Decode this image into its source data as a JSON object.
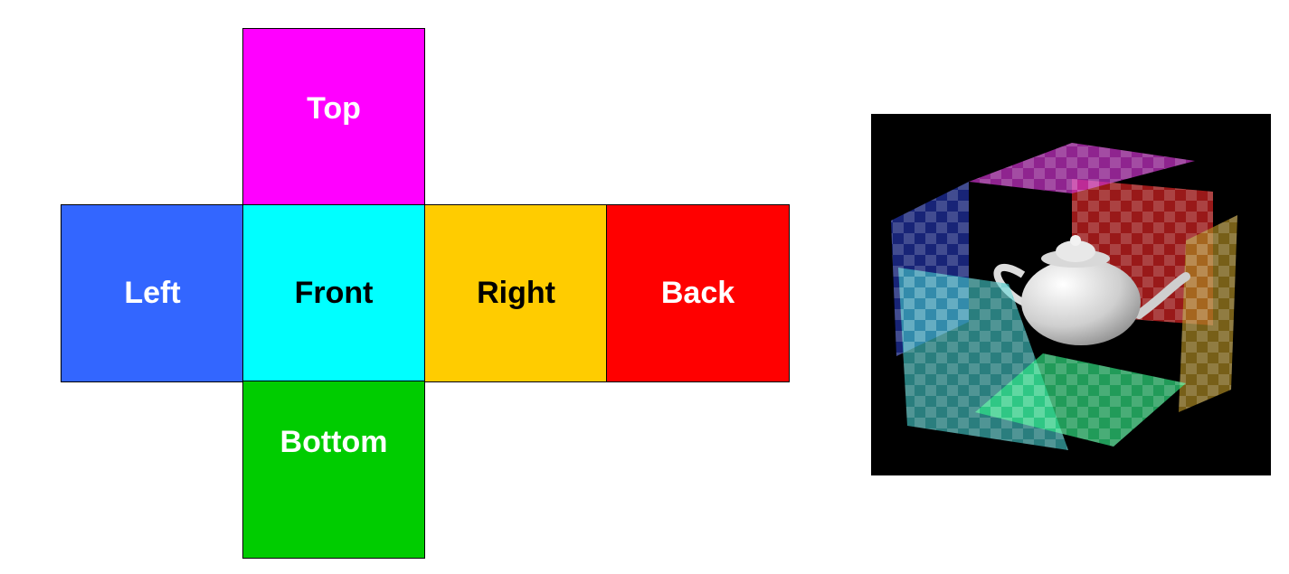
{
  "cube_net": {
    "faces": [
      {
        "id": "top",
        "label": "Top",
        "color": "#ff00ff",
        "text_color": "#ffffff"
      },
      {
        "id": "left",
        "label": "Left",
        "color": "#3366ff",
        "text_color": "#ffffff"
      },
      {
        "id": "front",
        "label": "Front",
        "color": "#00ffff",
        "text_color": "#000000"
      },
      {
        "id": "right",
        "label": "Right",
        "color": "#ffcc00",
        "text_color": "#000000"
      },
      {
        "id": "back",
        "label": "Back",
        "color": "#ff0000",
        "text_color": "#ffffff"
      },
      {
        "id": "bottom",
        "label": "Bottom",
        "color": "#00cc00",
        "text_color": "#ffffff"
      }
    ]
  },
  "render": {
    "background": "#000000",
    "object_icon": "teapot-icon",
    "panel_colors": {
      "top": "#cc33cc",
      "back": "#cc2222",
      "left": "#2233aa",
      "right": "#aa8822",
      "front": "#44cccc",
      "bottom": "#33ee88"
    }
  }
}
